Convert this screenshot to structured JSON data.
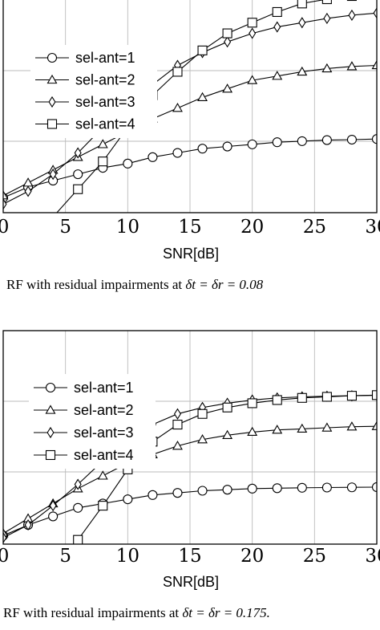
{
  "chart_data": [
    {
      "type": "line",
      "xlabel": "SNR[dB]",
      "x_ticks": [
        "0",
        "5",
        "10",
        "15",
        "20",
        "25",
        "30"
      ],
      "xlim": [
        0,
        30
      ],
      "ylim": [
        0,
        100
      ],
      "grid": true,
      "legend_position": "upper-left",
      "caption": {
        "prefix": "RF with residual impairments at ",
        "math": "δt = δr = 0.08"
      },
      "x": [
        0,
        2,
        4,
        6,
        8,
        10,
        12,
        14,
        16,
        18,
        20,
        22,
        24,
        26,
        28,
        30
      ],
      "series": [
        {
          "name": "sel-ant=1",
          "marker": "circle",
          "values": [
            7,
            12,
            15,
            18,
            21,
            23,
            26,
            28,
            30,
            31,
            32,
            33,
            33.5,
            34,
            34.2,
            34.5
          ]
        },
        {
          "name": "sel-ant=2",
          "marker": "triangle",
          "values": [
            8,
            14,
            20,
            26,
            32,
            38,
            44,
            49,
            54,
            58,
            62,
            64,
            66,
            67.5,
            68.5,
            69
          ]
        },
        {
          "name": "sel-ant=3",
          "marker": "diamond",
          "values": [
            4,
            10,
            18,
            28,
            40,
            50,
            60,
            69,
            75,
            80,
            84,
            87,
            89,
            91,
            92.5,
            93.5
          ]
        },
        {
          "name": "sel-ant=4",
          "marker": "square",
          "values": [
            null,
            null,
            null,
            11,
            24,
            40,
            55,
            66,
            76,
            84,
            89,
            94,
            98,
            100,
            101.5,
            103
          ]
        }
      ]
    },
    {
      "type": "line",
      "xlabel": "SNR[dB]",
      "x_ticks": [
        "0",
        "5",
        "10",
        "15",
        "20",
        "25",
        "30"
      ],
      "xlim": [
        0,
        30
      ],
      "ylim": [
        0,
        100
      ],
      "grid": true,
      "legend_position": "upper-left",
      "caption": {
        "prefix": "RF with residual impairments at ",
        "math": "δt = δr = 0.175."
      },
      "x": [
        0,
        2,
        4,
        6,
        8,
        10,
        12,
        14,
        16,
        18,
        20,
        22,
        24,
        26,
        28,
        30
      ],
      "series": [
        {
          "name": "sel-ant=1",
          "marker": "circle",
          "values": [
            4,
            9,
            13,
            17,
            19,
            21,
            23,
            24,
            25,
            25.5,
            26,
            26.2,
            26.4,
            26.5,
            26.6,
            26.7
          ]
        },
        {
          "name": "sel-ant=2",
          "marker": "triangle",
          "values": [
            5,
            12,
            19,
            26,
            32,
            38,
            42,
            46,
            49,
            51,
            52.5,
            53.5,
            54,
            54.5,
            55,
            55.2
          ]
        },
        {
          "name": "sel-ant=3",
          "marker": "diamond",
          "values": [
            3,
            9,
            18,
            28,
            39,
            49,
            56,
            61,
            64,
            66,
            67.5,
            68.5,
            69,
            69.3,
            69.5,
            69.7
          ]
        },
        {
          "name": "sel-ant=4",
          "marker": "square",
          "values": [
            null,
            null,
            null,
            2,
            18,
            35,
            48,
            56,
            61,
            64,
            66,
            67.5,
            68.5,
            69,
            69.5,
            69.8
          ]
        }
      ]
    }
  ]
}
